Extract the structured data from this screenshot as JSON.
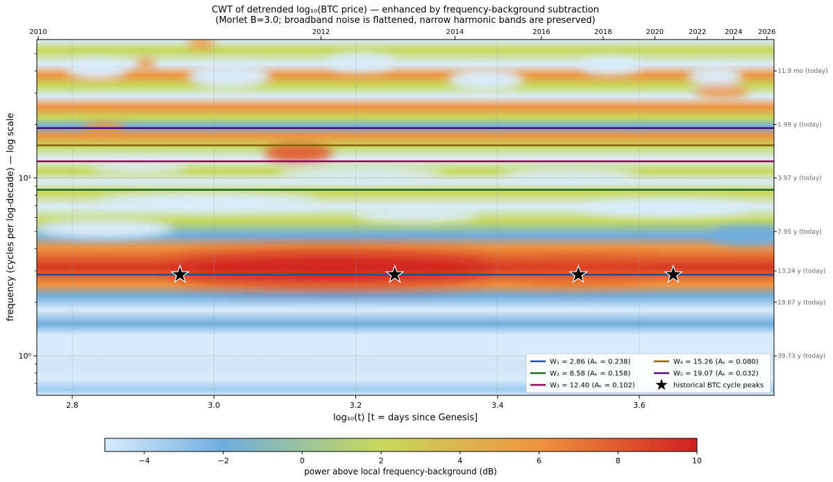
{
  "chart_data": {
    "type": "heatmap",
    "title_line1": "CWT of detrended log₁₀(BTC price)  — enhanced by frequency-background subtraction",
    "title_line2": "(Morlet B=3.0; broadband noise is flattened, narrow harmonic bands are preserved)",
    "xlabel": "log₁₀(t)     [t = days since Genesis]",
    "ylabel": "frequency  (cycles per log-decade)   — log scale",
    "xlim": [
      2.75,
      3.79
    ],
    "ylim": [
      0.6,
      60
    ],
    "x_ticks": [
      2.8,
      3.0,
      3.2,
      3.4,
      3.6
    ],
    "x_tick_labels": [
      "2.8",
      "3.0",
      "3.2",
      "3.4",
      "3.6"
    ],
    "y_ticks": [
      1,
      10
    ],
    "y_tick_labels": [
      "10⁰",
      "10¹"
    ],
    "top_axis_years": [
      "2010",
      "2012",
      "2014",
      "2016",
      "2018",
      "2020",
      "2022",
      "2024",
      "2026"
    ],
    "top_axis_x": [
      2.752,
      3.151,
      3.34,
      3.462,
      3.549,
      3.622,
      3.682,
      3.733,
      3.78
    ],
    "right_axis_labels": [
      "11.9 mo (today)",
      "1.99 y (today)",
      "3.97 y (today)",
      "7.95 y (today)",
      "13.24 y (today)",
      "19.87 y (today)",
      "39.73 y (today)"
    ],
    "right_axis_freq": [
      40,
      20,
      10,
      5,
      3,
      2,
      1
    ],
    "harmonic_lines": [
      {
        "name": "W₁ = 2.86   (Aₖ = 0.238)",
        "freq": 2.86,
        "amplitude": 0.238,
        "color": "#1f4fa0"
      },
      {
        "name": "W₂ = 8.58   (Aₖ = 0.158)",
        "freq": 8.58,
        "amplitude": 0.158,
        "color": "#1e6b1e"
      },
      {
        "name": "W₃ = 12.40   (Aₖ = 0.102)",
        "freq": 12.4,
        "amplitude": 0.102,
        "color": "#8b0a50"
      },
      {
        "name": "W₄ = 15.26   (Aₖ = 0.080)",
        "freq": 15.26,
        "amplitude": 0.08,
        "color": "#8b6508"
      },
      {
        "name": "W₅ = 19.07   (Aₖ = 0.032)",
        "freq": 19.07,
        "amplitude": 0.032,
        "color": "#4b0f7a"
      }
    ],
    "peaks_label": "historical BTC cycle peaks",
    "peaks": [
      {
        "x": 2.952,
        "y": 2.86
      },
      {
        "x": 3.255,
        "y": 2.86
      },
      {
        "x": 3.514,
        "y": 2.86
      },
      {
        "x": 3.648,
        "y": 2.86
      }
    ],
    "colorbar": {
      "label": "power above local frequency-background (dB)",
      "range": [
        -5,
        10
      ],
      "ticks": [
        -4,
        -2,
        0,
        2,
        4,
        6,
        8,
        10
      ],
      "tick_labels": [
        "−4",
        "−2",
        "0",
        "2",
        "4",
        "6",
        "8",
        "10"
      ],
      "colors": [
        "#d9ecfb",
        "#6fadde",
        "#c6d85c",
        "#ee9440",
        "#d02020"
      ]
    }
  }
}
